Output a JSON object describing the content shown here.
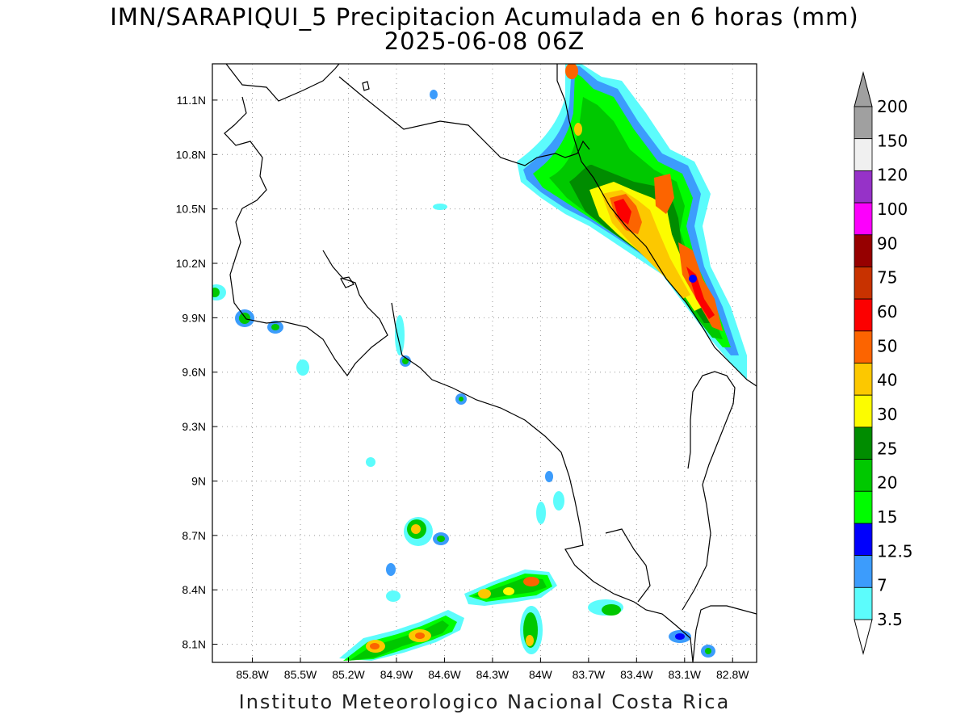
{
  "title_line1": "IMN/SARAPIQUI_5 Precipitacion Acumulada en 6 horas (mm)",
  "title_line2": "2025-06-08 06Z",
  "footer": "Instituto Meteorologico Nacional Costa Rica",
  "map": {
    "lon_range": [
      -86.05,
      -82.65
    ],
    "lat_range": [
      8.0,
      11.3
    ],
    "lon_ticks": [
      "85.8W",
      "85.5W",
      "85.2W",
      "84.9W",
      "84.6W",
      "84.3W",
      "84W",
      "83.7W",
      "83.4W",
      "83.1W",
      "82.8W"
    ],
    "lat_ticks": [
      "11.1N",
      "10.8N",
      "10.5N",
      "10.2N",
      "9.9N",
      "9.6N",
      "9.3N",
      "9N",
      "8.7N",
      "8.4N",
      "8.1N"
    ],
    "grid": "dotted"
  },
  "colorbar": {
    "levels": [
      "3.5",
      "7",
      "12.5",
      "15",
      "20",
      "25",
      "30",
      "40",
      "50",
      "60",
      "75",
      "90",
      "100",
      "120",
      "150",
      "200"
    ],
    "colors": [
      "#5cfcfc",
      "#3c9cfc",
      "#0000fc",
      "#00fc00",
      "#00c800",
      "#008c00",
      "#fcfc00",
      "#fcc800",
      "#fc6400",
      "#fc0000",
      "#c83200",
      "#960000",
      "#fc00fc",
      "#9632c8",
      "#f0f0f0",
      "#a0a0a0"
    ],
    "over_color": "#a0a0a0",
    "under_color": "#ffffff"
  }
}
